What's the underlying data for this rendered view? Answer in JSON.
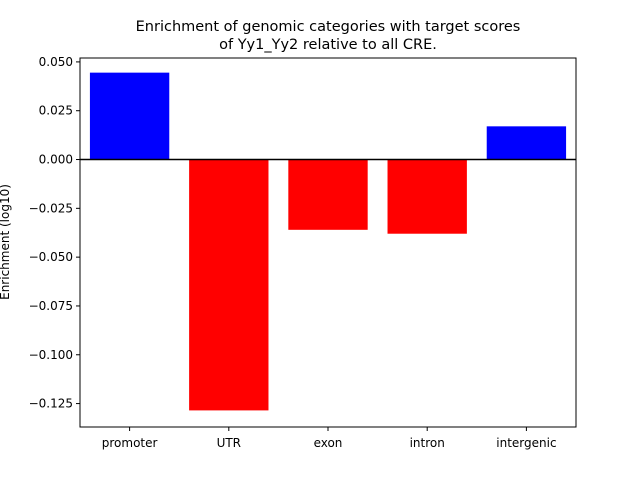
{
  "chart_data": {
    "type": "bar",
    "title_lines": [
      "Enrichment of genomic categories with target scores",
      "of Yy1_Yy2 relative to all CRE."
    ],
    "xlabel": "",
    "ylabel": "Enrichment (log10)",
    "categories": [
      "promoter",
      "UTR",
      "exon",
      "intron",
      "intergenic"
    ],
    "values": [
      0.0445,
      -0.1285,
      -0.036,
      -0.038,
      0.017
    ],
    "bar_colors": [
      "#0000ff",
      "#ff0000",
      "#ff0000",
      "#ff0000",
      "#0000ff"
    ],
    "positive_color": "#0000ff",
    "negative_color": "#ff0000",
    "ylim": [
      -0.137,
      0.052
    ],
    "yticks": [
      0.05,
      0.025,
      0.0,
      -0.025,
      -0.05,
      -0.075,
      -0.1,
      -0.125
    ],
    "ytick_labels": [
      "0.050",
      "0.025",
      "0.000",
      "−0.025",
      "−0.050",
      "−0.075",
      "−0.100",
      "−0.125"
    ],
    "zero_line": true,
    "grid": false,
    "legend": "none"
  }
}
